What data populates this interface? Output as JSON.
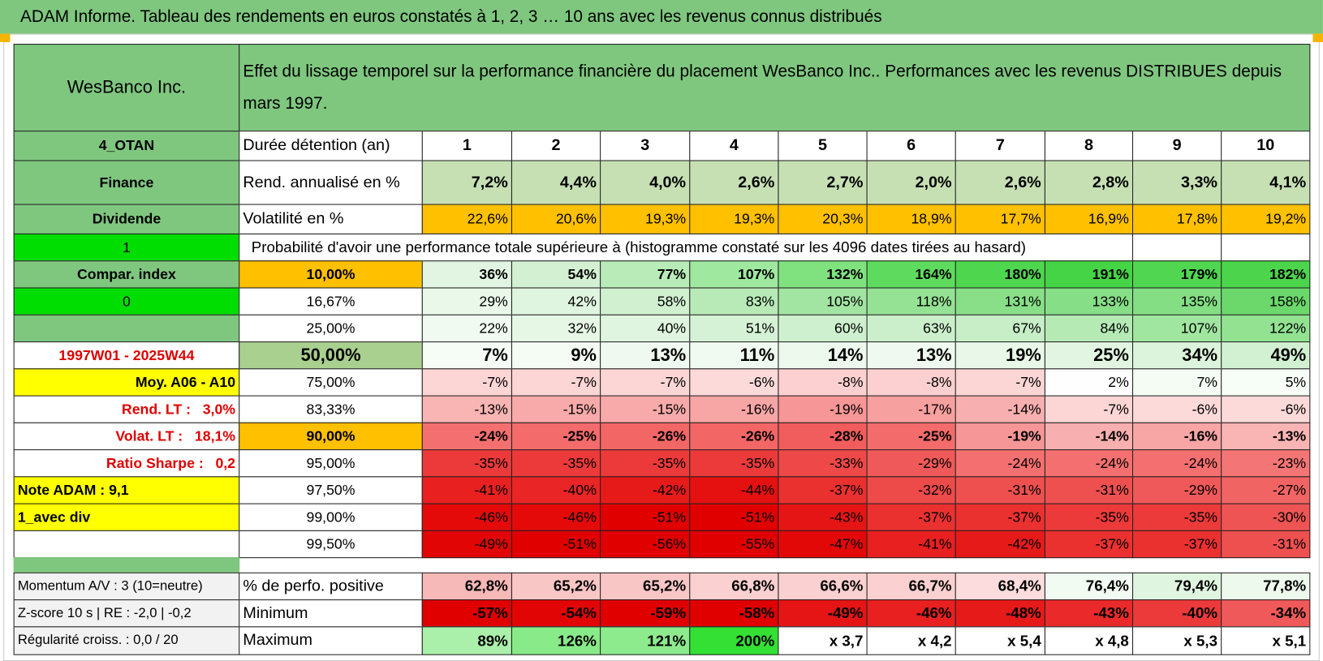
{
  "header": {
    "title": "ADAM Informe. Tableau des rendements en euros constatés à 1, 2, 3 … 10 ans avec les revenus connus distribués"
  },
  "table": {
    "name": "WesBanco Inc.",
    "description": "Effet du lissage temporel sur la performance financière du placement WesBanco Inc.. Performances avec les revenus DISTRIBUES depuis mars 1997.",
    "rows": [
      {
        "label": "4_OTAN",
        "metric": "Durée détention (an)",
        "values": [
          "1",
          "2",
          "3",
          "4",
          "5",
          "6",
          "7",
          "8",
          "9",
          "10"
        ],
        "color": "#ffffff"
      },
      {
        "label": "Finance",
        "metric": "Rend. annualisé en %",
        "values": [
          "7,2%",
          "4,4%",
          "4,0%",
          "2,6%",
          "2,7%",
          "2,0%",
          "2,6%",
          "2,8%",
          "3,3%",
          "4,1%"
        ],
        "color": "#c6e0b4"
      },
      {
        "label": "Dividende",
        "metric": "Volatilité en %",
        "values": [
          "22,6%",
          "20,6%",
          "19,3%",
          "19,3%",
          "20,3%",
          "18,9%",
          "17,7%",
          "16,9%",
          "17,8%",
          "19,2%"
        ],
        "color": "#ffc000"
      },
      {
        "label": "1",
        "note": "Probabilité d'avoir une performance totale supérieure à (histogramme constaté sur les 4096 dates tirées au hasard)"
      },
      {
        "label": "Compar. index",
        "metric": "10,00%",
        "values": [
          "36%",
          "54%",
          "77%",
          "107%",
          "132%",
          "164%",
          "180%",
          "191%",
          "179%",
          "182%"
        ],
        "colors": [
          "#e2f5e2",
          "#d3f0d3",
          "#b8ebb8",
          "#9fe89f",
          "#7fe27f",
          "#5edb5e",
          "#4ed64e",
          "#45d445",
          "#50d650",
          "#4cd54c"
        ]
      },
      {
        "label": "0",
        "metric": "16,67%",
        "values": [
          "29%",
          "42%",
          "58%",
          "83%",
          "105%",
          "118%",
          "131%",
          "133%",
          "135%",
          "158%"
        ],
        "colors": [
          "#eaf8ea",
          "#e0f5e0",
          "#d0f0d0",
          "#b8eab8",
          "#a2e5a2",
          "#95e295",
          "#88df88",
          "#86de86",
          "#84de84",
          "#6cd86c"
        ]
      },
      {
        "metric": "25,00%",
        "values": [
          "22%",
          "32%",
          "40%",
          "51%",
          "60%",
          "63%",
          "67%",
          "84%",
          "107%",
          "122%"
        ],
        "colors": [
          "#f0faf0",
          "#e6f7e6",
          "#e0f5e0",
          "#d6f2d6",
          "#cef0ce",
          "#cbefcb",
          "#c7eec7",
          "#b5eab5",
          "#a0e6a0",
          "#92e292"
        ]
      },
      {
        "label": "1997W01 - 2025W44",
        "metric": "50,00%",
        "values": [
          "7%",
          "9%",
          "13%",
          "11%",
          "14%",
          "13%",
          "19%",
          "25%",
          "34%",
          "49%"
        ],
        "colors": [
          "#f6fdf6",
          "#f4fcf4",
          "#eff9ef",
          "#f1faf1",
          "#eef9ee",
          "#eff9ef",
          "#e8f7e8",
          "#e2f5e2",
          "#dcf4dc",
          "#d2f1d2"
        ]
      },
      {
        "label": "Moy. A06 - A10",
        "metric": "75,00%",
        "values": [
          "-7%",
          "-7%",
          "-7%",
          "-6%",
          "-8%",
          "-8%",
          "-7%",
          "2%",
          "7%",
          "5%"
        ],
        "colors": [
          "#fcd5d5",
          "#fcd5d5",
          "#fcd5d5",
          "#fcdada",
          "#fcd0d0",
          "#fcd0d0",
          "#fcd5d5",
          "#fefefe",
          "#f4fcf4",
          "#f7fdf7"
        ]
      },
      {
        "label": "Rend. LT :   3,0%",
        "metric": "83,33%",
        "values": [
          "-13%",
          "-15%",
          "-15%",
          "-16%",
          "-19%",
          "-17%",
          "-14%",
          "-7%",
          "-6%",
          "-6%"
        ],
        "colors": [
          "#f9b4b4",
          "#f8aaaa",
          "#f8aaaa",
          "#f7a5a5",
          "#f69696",
          "#f7a0a0",
          "#f8afaf",
          "#fcd5d5",
          "#fcdada",
          "#fcdada"
        ]
      },
      {
        "label": "Volat. LT :   18,1%",
        "metric": "90,00%",
        "values": [
          "-24%",
          "-25%",
          "-26%",
          "-26%",
          "-28%",
          "-25%",
          "-19%",
          "-14%",
          "-16%",
          "-13%"
        ],
        "colors": [
          "#f47070",
          "#f36b6b",
          "#f36666",
          "#f36666",
          "#f15c5c",
          "#f36b6b",
          "#f69696",
          "#f8afaf",
          "#f7a5a5",
          "#f9b4b4"
        ]
      },
      {
        "label": "Ratio Sharpe :   0,2",
        "metric": "95,00%",
        "values": [
          "-35%",
          "-35%",
          "-35%",
          "-35%",
          "-33%",
          "-29%",
          "-24%",
          "-24%",
          "-24%",
          "-23%"
        ],
        "colors": [
          "#ec3a3a",
          "#ec3a3a",
          "#ec3a3a",
          "#ec3a3a",
          "#ee4848",
          "#f05959",
          "#f47070",
          "#f47070",
          "#f47070",
          "#f47575"
        ]
      },
      {
        "label": "Note ADAM : 9,1",
        "metric": "97,50%",
        "values": [
          "-41%",
          "-40%",
          "-42%",
          "-44%",
          "-37%",
          "-32%",
          "-31%",
          "-31%",
          "-29%",
          "-27%"
        ],
        "colors": [
          "#e82020",
          "#e92525",
          "#e71a1a",
          "#e51010",
          "#eb3030",
          "#ed4a4a",
          "#ee5050",
          "#ee5050",
          "#f05959",
          "#f16464"
        ]
      },
      {
        "label": "1_avec div",
        "metric": "99,00%",
        "values": [
          "-46%",
          "-46%",
          "-51%",
          "-51%",
          "-43%",
          "-37%",
          "-37%",
          "-35%",
          "-35%",
          "-30%"
        ],
        "colors": [
          "#e40a0a",
          "#e40a0a",
          "#e00000",
          "#e00000",
          "#e61515",
          "#eb3030",
          "#eb3030",
          "#ec3a3a",
          "#ec3a3a",
          "#ef5454"
        ]
      },
      {
        "metric": "99,50%",
        "values": [
          "-49%",
          "-51%",
          "-56%",
          "-55%",
          "-47%",
          "-41%",
          "-42%",
          "-37%",
          "-37%",
          "-31%"
        ],
        "colors": [
          "#e20505",
          "#e00000",
          "#e00000",
          "#e00000",
          "#e30808",
          "#e82020",
          "#e71a1a",
          "#eb3030",
          "#eb3030",
          "#ee5050"
        ]
      }
    ],
    "summary": [
      {
        "label": "Momentum A/V : 3 (10=neutre)",
        "metric": "% de perfo. positive",
        "values": [
          "62,8%",
          "65,2%",
          "65,2%",
          "66,8%",
          "66,6%",
          "66,7%",
          "68,4%",
          "76,4%",
          "79,4%",
          "77,8%"
        ],
        "colors": [
          "#f7b8b8",
          "#f9c6c6",
          "#f9c6c6",
          "#fad0d0",
          "#fad0d0",
          "#fad0d0",
          "#fcdcdc",
          "#f2fbf2",
          "#dff5df",
          "#ecf9ec"
        ]
      },
      {
        "label": "Z-score 10 s | RE : -2,0 | -0,2",
        "metric": "Minimum",
        "values": [
          "-57%",
          "-54%",
          "-59%",
          "-58%",
          "-49%",
          "-46%",
          "-48%",
          "-43%",
          "-40%",
          "-34%"
        ],
        "colors": [
          "#e00000",
          "#e20505",
          "#e00000",
          "#e00000",
          "#e61515",
          "#e82020",
          "#e71a1a",
          "#ea2a2a",
          "#ec3a3a",
          "#f05959"
        ]
      },
      {
        "label": "Régularité croiss. : 0,0 / 20",
        "metric": "Maximum",
        "values": [
          "89%",
          "126%",
          "121%",
          "200%",
          "x 3,7",
          "x 4,2",
          "x 5,4",
          "x 4,8",
          "x 5,3",
          "x 5,1"
        ],
        "colors": [
          "#aaf0aa",
          "#88ea88",
          "#8deb8d",
          "#33e033",
          "#ffffff",
          "#ffffff",
          "#ffffff",
          "#ffffff",
          "#ffffff",
          "#ffffff"
        ]
      }
    ]
  }
}
